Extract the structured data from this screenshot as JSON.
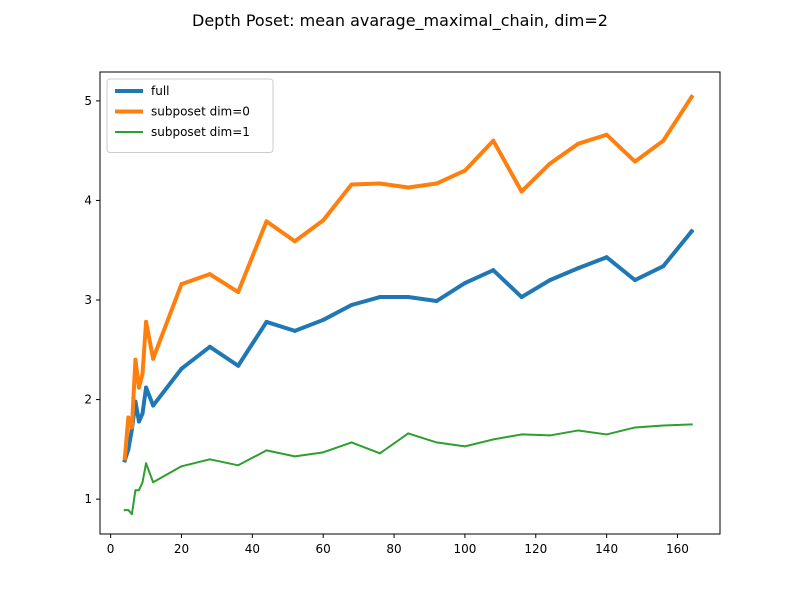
{
  "chart_data": {
    "type": "line",
    "title": "Depth Poset: mean avarage_maximal_chain, dim=2",
    "xlabel": "",
    "ylabel": "",
    "xlim": [
      -3,
      172
    ],
    "ylim": [
      0.65,
      5.29
    ],
    "xticks": [
      0,
      20,
      40,
      60,
      80,
      100,
      120,
      140,
      160
    ],
    "xtick_labels": [
      "0",
      "20",
      "40",
      "60",
      "80",
      "100",
      "120",
      "140",
      "160"
    ],
    "yticks": [
      1,
      2,
      3,
      4,
      5
    ],
    "ytick_labels": [
      "1",
      "2",
      "3",
      "4",
      "5"
    ],
    "grid": false,
    "legend_position": "top-left",
    "x": [
      4,
      5,
      6,
      7,
      8,
      9,
      10,
      12,
      20,
      28,
      36,
      44,
      52,
      60,
      68,
      76,
      84,
      92,
      100,
      108,
      116,
      124,
      132,
      140,
      148,
      156,
      164
    ],
    "series": [
      {
        "name": "full",
        "color": "#1f77b4",
        "emphasis": "thick",
        "values": [
          1.39,
          1.5,
          1.7,
          1.98,
          1.78,
          1.86,
          2.12,
          1.94,
          2.31,
          2.53,
          2.34,
          2.78,
          2.69,
          2.8,
          2.95,
          3.03,
          3.03,
          2.99,
          3.17,
          3.3,
          3.03,
          3.2,
          3.32,
          3.43,
          3.2,
          3.34,
          3.69
        ]
      },
      {
        "name": "subposet dim=0",
        "color": "#ff7f0e",
        "emphasis": "thick",
        "values": [
          1.41,
          1.82,
          1.72,
          2.4,
          2.12,
          2.26,
          2.78,
          2.41,
          3.16,
          3.26,
          3.08,
          3.79,
          3.59,
          3.8,
          4.16,
          4.17,
          4.13,
          4.17,
          4.3,
          4.6,
          4.09,
          4.37,
          4.57,
          4.66,
          4.39,
          4.6,
          5.04
        ]
      },
      {
        "name": "subposet dim=1",
        "color": "#2ca02c",
        "emphasis": "normal",
        "values": [
          0.89,
          0.89,
          0.85,
          1.09,
          1.09,
          1.17,
          1.36,
          1.17,
          1.33,
          1.4,
          1.34,
          1.49,
          1.43,
          1.47,
          1.57,
          1.46,
          1.66,
          1.57,
          1.53,
          1.6,
          1.65,
          1.64,
          1.69,
          1.65,
          1.72,
          1.74,
          1.75
        ]
      }
    ]
  }
}
